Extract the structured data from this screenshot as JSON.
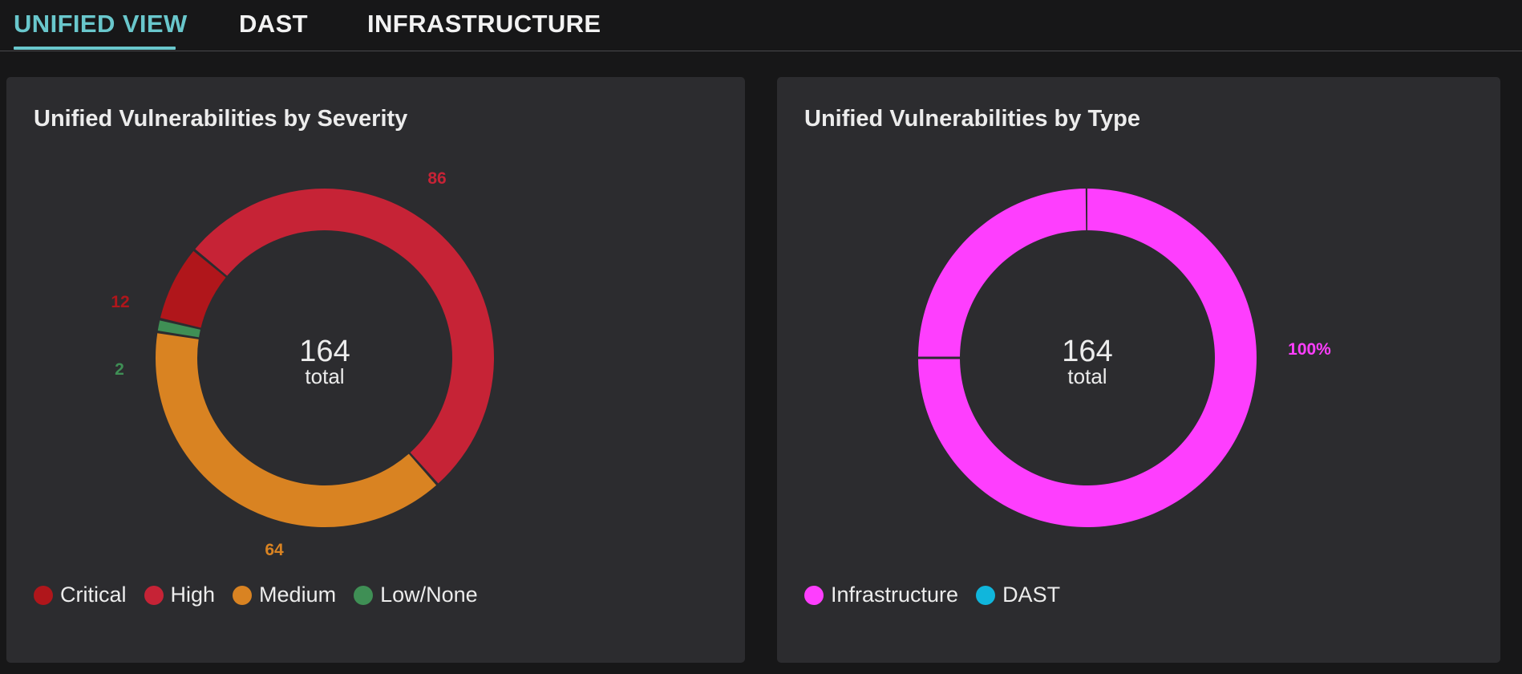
{
  "tabs": [
    {
      "label": "UNIFIED VIEW",
      "active": true
    },
    {
      "label": "DAST",
      "active": false
    },
    {
      "label": "INFRASTRUCTURE",
      "active": false
    }
  ],
  "colors": {
    "accent": "#69c7cc",
    "critical": "#b0161b",
    "high": "#c62336",
    "medium": "#d98322",
    "low": "#3f8f55",
    "infrastructure": "#fe3efe",
    "dast": "#10b6dc"
  },
  "chart_data": [
    {
      "type": "pie",
      "variant": "donut",
      "title": "Unified Vulnerabilities by Severity",
      "center_value": "164",
      "center_label": "total",
      "slices": [
        {
          "name": "Critical",
          "value": 12,
          "label": "12",
          "color": "#b0161b"
        },
        {
          "name": "High",
          "value": 86,
          "label": "86",
          "color": "#c62336"
        },
        {
          "name": "Medium",
          "value": 64,
          "label": "64",
          "color": "#d98322"
        },
        {
          "name": "Low/None",
          "value": 2,
          "label": "2",
          "color": "#3f8f55"
        }
      ],
      "legend": [
        {
          "name": "Critical",
          "color": "#b0161b"
        },
        {
          "name": "High",
          "color": "#c62336"
        },
        {
          "name": "Medium",
          "color": "#d98322"
        },
        {
          "name": "Low/None",
          "color": "#3f8f55"
        }
      ],
      "legend_position": "bottom-left"
    },
    {
      "type": "pie",
      "variant": "donut",
      "title": "Unified Vulnerabilities by Type",
      "center_value": "164",
      "center_label": "total",
      "slices": [
        {
          "name": "Infrastructure",
          "value": 164,
          "label": "100%",
          "color": "#fe3efe"
        },
        {
          "name": "DAST",
          "value": 0,
          "label": "",
          "color": "#10b6dc"
        }
      ],
      "legend": [
        {
          "name": "Infrastructure",
          "color": "#fe3efe"
        },
        {
          "name": "DAST",
          "color": "#10b6dc"
        }
      ],
      "legend_position": "bottom-left"
    }
  ]
}
